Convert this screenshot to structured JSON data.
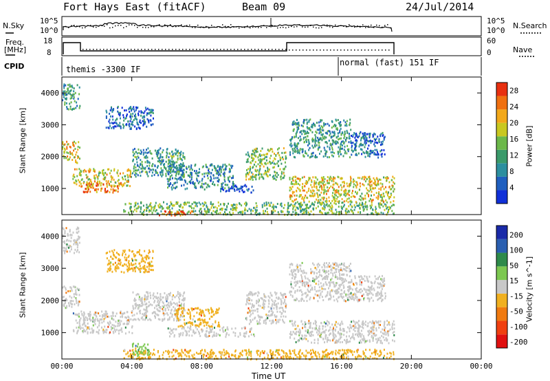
{
  "header": {
    "station": "Fort Hays East (fitACF)",
    "beam": "Beam 09",
    "date": "24/Jul/2014"
  },
  "top_panels": {
    "nsky_label": "N.Sky",
    "nsearch_label": "N.Search",
    "noise_ticks": [
      "10^5",
      "10^0"
    ],
    "freq_label": "Freq.",
    "freq_unit": "[MHz]",
    "freq_ticks": [
      "18",
      "8"
    ],
    "nave_label": "Nave",
    "nave_ticks": [
      "60",
      "0"
    ],
    "cpid_label": "CPID",
    "cpid_segments": [
      {
        "label": "themis -3300 IF",
        "start_hour": 0,
        "end_hour": 16
      },
      {
        "label": "normal (fast) 151 IF",
        "start_hour": 16,
        "end_hour": 24
      }
    ]
  },
  "chart_data": [
    {
      "type": "heatmap",
      "parameter": "Power",
      "ylabel": "Slant Range [km]",
      "xlabel": "Time UT",
      "xlim": [
        0,
        24
      ],
      "ylim": [
        180,
        4500
      ],
      "x_ticks": [
        "00:00",
        "04:00",
        "08:00",
        "12:00",
        "16:00",
        "20:00",
        "00:00"
      ],
      "y_ticks": [
        "1000",
        "2000",
        "3000",
        "4000"
      ],
      "colorbar_label": "Power [dB]",
      "colorbar_ticks": [
        "4",
        "8",
        "12",
        "16",
        "20",
        "24",
        "28"
      ],
      "colorbar_range": [
        0,
        30
      ],
      "regions": [
        {
          "t0": 0.0,
          "t1": 1.0,
          "r0": 3500,
          "r1": 4300,
          "value": 10
        },
        {
          "t0": 0.0,
          "t1": 1.0,
          "r0": 1800,
          "r1": 2500,
          "value": 20
        },
        {
          "t0": 0.6,
          "t1": 4.0,
          "r0": 1100,
          "r1": 1650,
          "value": 19
        },
        {
          "t0": 1.0,
          "t1": 3.5,
          "r0": 900,
          "r1": 1200,
          "value": 24
        },
        {
          "t0": 2.5,
          "t1": 5.2,
          "r0": 2900,
          "r1": 3600,
          "value": 6
        },
        {
          "t0": 4.0,
          "t1": 7.0,
          "r0": 1400,
          "r1": 2300,
          "value": 11
        },
        {
          "t0": 6.0,
          "t1": 9.8,
          "r0": 1000,
          "r1": 1800,
          "value": 9
        },
        {
          "t0": 9.0,
          "t1": 11.0,
          "r0": 900,
          "r1": 1150,
          "value": 4
        },
        {
          "t0": 3.5,
          "t1": 19.0,
          "r0": 200,
          "r1": 600,
          "value": 14
        },
        {
          "t0": 5.5,
          "t1": 7.5,
          "r0": 180,
          "r1": 320,
          "value": 27
        },
        {
          "t0": 10.5,
          "t1": 12.8,
          "r0": 1300,
          "r1": 2300,
          "value": 15
        },
        {
          "t0": 13.0,
          "t1": 19.0,
          "r0": 600,
          "r1": 1400,
          "value": 19
        },
        {
          "t0": 13.0,
          "t1": 16.5,
          "r0": 2000,
          "r1": 3200,
          "value": 10
        },
        {
          "t0": 16.5,
          "t1": 18.5,
          "r0": 2000,
          "r1": 2800,
          "value": 6
        }
      ]
    },
    {
      "type": "heatmap",
      "parameter": "Velocity",
      "ylabel": "Slant Range [km]",
      "xlabel": "Time UT",
      "xlim": [
        0,
        24
      ],
      "ylim": [
        180,
        4500
      ],
      "x_ticks": [
        "00:00",
        "04:00",
        "08:00",
        "12:00",
        "16:00",
        "20:00",
        "00:00"
      ],
      "y_ticks": [
        "1000",
        "2000",
        "3000",
        "4000"
      ],
      "colorbar_label": "Velocity [m s^-1]",
      "colorbar_ticks": [
        "200",
        "100",
        "50",
        "15",
        "-15",
        "-50",
        "-100",
        "-200"
      ],
      "colorbar_range": [
        -250,
        250
      ],
      "regions": [
        {
          "t0": 0.0,
          "t1": 1.0,
          "r0": 3500,
          "r1": 4300,
          "value": 0
        },
        {
          "t0": 0.0,
          "t1": 1.0,
          "r0": 1800,
          "r1": 2500,
          "value": 0
        },
        {
          "t0": 0.6,
          "t1": 4.0,
          "r0": 1000,
          "r1": 1700,
          "value": 0
        },
        {
          "t0": 2.5,
          "t1": 5.2,
          "r0": 2900,
          "r1": 3600,
          "value": -30
        },
        {
          "t0": 4.0,
          "t1": 7.0,
          "r0": 1400,
          "r1": 2300,
          "value": 0
        },
        {
          "t0": 6.5,
          "t1": 9.0,
          "r0": 1200,
          "r1": 1800,
          "value": -40
        },
        {
          "t0": 6.0,
          "t1": 11.0,
          "r0": 900,
          "r1": 1200,
          "value": 0
        },
        {
          "t0": 3.5,
          "t1": 19.0,
          "r0": 200,
          "r1": 500,
          "value": -40
        },
        {
          "t0": 4.0,
          "t1": 5.0,
          "r0": 300,
          "r1": 700,
          "value": 30
        },
        {
          "t0": 10.5,
          "t1": 12.8,
          "r0": 1300,
          "r1": 2300,
          "value": 0
        },
        {
          "t0": 13.0,
          "t1": 19.0,
          "r0": 700,
          "r1": 1400,
          "value": 0
        },
        {
          "t0": 13.0,
          "t1": 16.5,
          "r0": 2000,
          "r1": 3200,
          "value": 0
        },
        {
          "t0": 16.5,
          "t1": 18.5,
          "r0": 2000,
          "r1": 2800,
          "value": 0
        }
      ]
    }
  ]
}
